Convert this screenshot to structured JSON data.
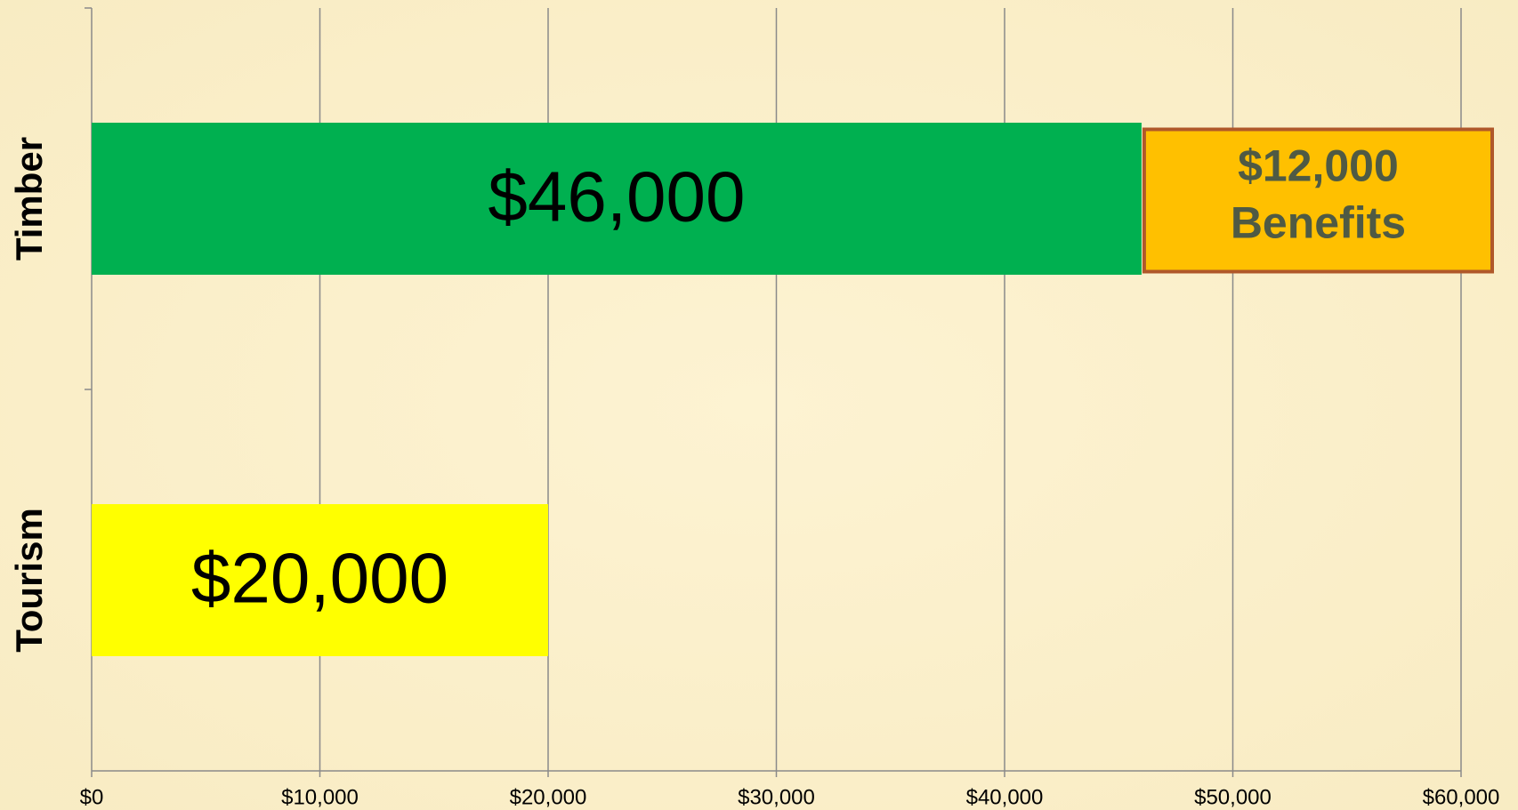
{
  "chart_data": {
    "type": "hbar",
    "categories": [
      "Timber",
      "Tourism"
    ],
    "values": [
      46000,
      20000
    ],
    "value_labels": [
      "$46,000",
      "$20,000"
    ],
    "colors": [
      "#00b050",
      "#ffff00"
    ],
    "annotation": [
      "$12,000",
      "Benefits"
    ],
    "xlim": [
      0,
      60000
    ],
    "xticks": [
      {
        "value": 0,
        "label": "$0"
      },
      {
        "value": 10000,
        "label": "$10,000"
      },
      {
        "value": 20000,
        "label": "$20,000"
      },
      {
        "value": 30000,
        "label": "$30,000"
      },
      {
        "value": 40000,
        "label": "$40,000"
      },
      {
        "value": 50000,
        "label": "$50,000"
      },
      {
        "value": 60000,
        "label": "$60,000"
      }
    ],
    "grid": true
  }
}
